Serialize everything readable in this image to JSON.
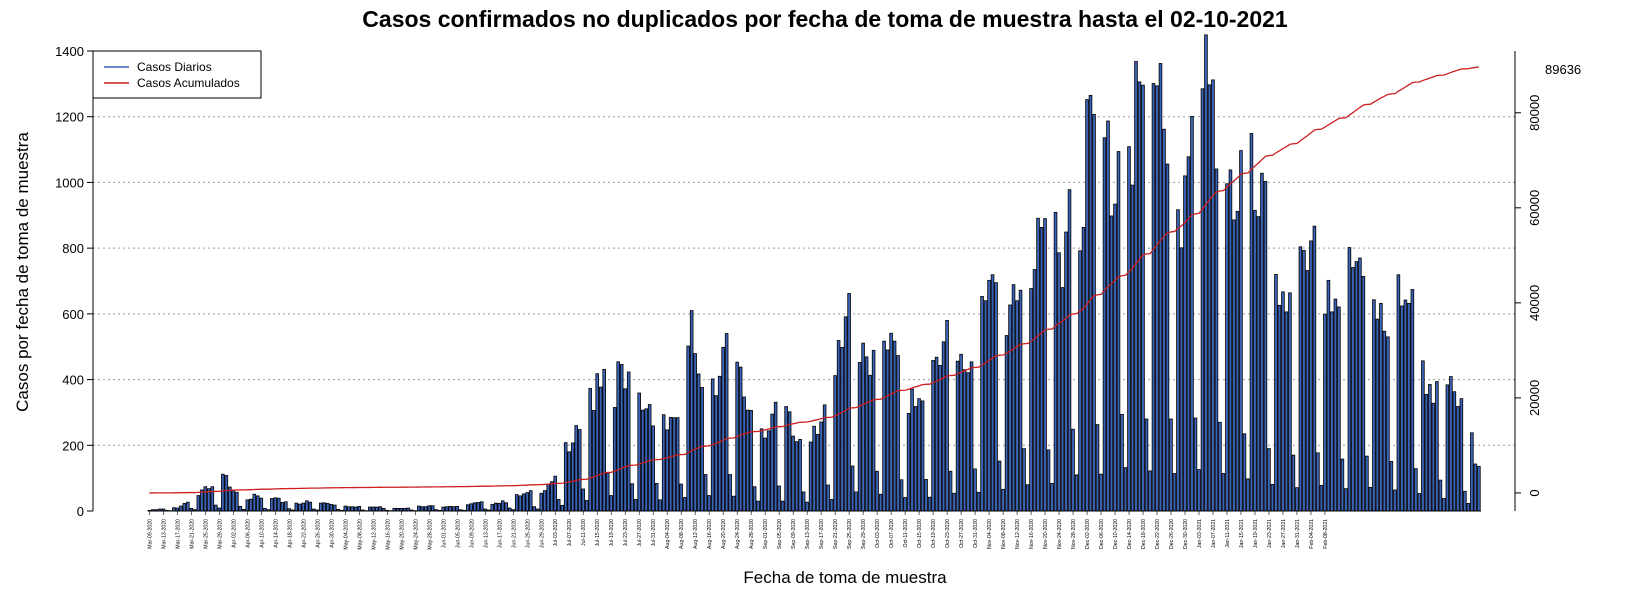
{
  "chart_data": {
    "type": "bar",
    "title": "Casos confirmados no duplicados por fecha de toma de muestra hasta el 02-10-2021",
    "xlabel": "Fecha de toma de muestra",
    "ylabel": "Casos por fecha de toma de muestra",
    "ylim": [
      0,
      1400
    ],
    "yticks": [
      0,
      200,
      400,
      600,
      800,
      1000,
      1200,
      1400
    ],
    "y2lim": [
      -3800,
      93000
    ],
    "y2ticks": [
      0,
      20000,
      40000,
      60000,
      80000
    ],
    "grid": "horizontal dotted",
    "legend": {
      "position": "top-left",
      "entries": [
        "Casos Diarios",
        "Casos Acumulados"
      ]
    },
    "colors": {
      "bars": "#3b63b8",
      "bar_edge": "#000000",
      "cumulative": "#cc1f1f"
    },
    "final_cumulative": "89636",
    "anchors": [
      {
        "x": 0,
        "y": 2
      },
      {
        "x": 4,
        "y": 5
      },
      {
        "x": 8,
        "y": 10
      },
      {
        "x": 12,
        "y": 30
      },
      {
        "x": 15,
        "y": 50
      },
      {
        "x": 18,
        "y": 55
      },
      {
        "x": 21,
        "y": 85
      },
      {
        "x": 24,
        "y": 70
      },
      {
        "x": 27,
        "y": 40
      },
      {
        "x": 33,
        "y": 30
      },
      {
        "x": 40,
        "y": 25
      },
      {
        "x": 50,
        "y": 20
      },
      {
        "x": 60,
        "y": 12
      },
      {
        "x": 70,
        "y": 8
      },
      {
        "x": 80,
        "y": 12
      },
      {
        "x": 90,
        "y": 15
      },
      {
        "x": 100,
        "y": 25
      },
      {
        "x": 110,
        "y": 45
      },
      {
        "x": 115,
        "y": 90
      },
      {
        "x": 118,
        "y": 140
      },
      {
        "x": 121,
        "y": 150
      },
      {
        "x": 126,
        "y": 300
      },
      {
        "x": 130,
        "y": 440
      },
      {
        "x": 135,
        "y": 320
      },
      {
        "x": 140,
        "y": 280
      },
      {
        "x": 145,
        "y": 300
      },
      {
        "x": 150,
        "y": 200
      },
      {
        "x": 155,
        "y": 430
      },
      {
        "x": 160,
        "y": 390
      },
      {
        "x": 165,
        "y": 420
      },
      {
        "x": 170,
        "y": 300
      },
      {
        "x": 175,
        "y": 240
      },
      {
        "x": 180,
        "y": 270
      },
      {
        "x": 185,
        "y": 180
      },
      {
        "x": 190,
        "y": 250
      },
      {
        "x": 195,
        "y": 290
      },
      {
        "x": 200,
        "y": 500
      },
      {
        "x": 205,
        "y": 450
      },
      {
        "x": 210,
        "y": 420
      },
      {
        "x": 215,
        "y": 340
      },
      {
        "x": 220,
        "y": 330
      },
      {
        "x": 225,
        "y": 360
      },
      {
        "x": 230,
        "y": 450
      },
      {
        "x": 235,
        "y": 440
      },
      {
        "x": 240,
        "y": 520
      },
      {
        "x": 245,
        "y": 560
      },
      {
        "x": 250,
        "y": 680
      },
      {
        "x": 255,
        "y": 600
      },
      {
        "x": 260,
        "y": 760
      },
      {
        "x": 265,
        "y": 920
      },
      {
        "x": 270,
        "y": 950
      },
      {
        "x": 275,
        "y": 900
      },
      {
        "x": 280,
        "y": 1150
      },
      {
        "x": 285,
        "y": 1000
      },
      {
        "x": 290,
        "y": 1100
      },
      {
        "x": 295,
        "y": 850
      },
      {
        "x": 300,
        "y": 1050
      },
      {
        "x": 305,
        "y": 980
      },
      {
        "x": 310,
        "y": 900
      },
      {
        "x": 315,
        "y": 800
      },
      {
        "x": 320,
        "y": 680
      },
      {
        "x": 325,
        "y": 640
      },
      {
        "x": 330,
        "y": 560
      },
      {
        "x": 335,
        "y": 650
      },
      {
        "x": 340,
        "y": 560
      },
      {
        "x": 345,
        "y": 580
      },
      {
        "x": 350,
        "y": 610
      },
      {
        "x": 355,
        "y": 540
      },
      {
        "x": 360,
        "y": 500
      },
      {
        "x": 365,
        "y": 400
      },
      {
        "x": 370,
        "y": 320
      },
      {
        "x": 375,
        "y": 240
      },
      {
        "x": 380,
        "y": 120
      }
    ],
    "bars_total": 381,
    "x_tick_labels": [
      "Mar-09-2020",
      "Mar-13-2020",
      "Mar-17-2020",
      "Mar-21-2020",
      "Mar-25-2020",
      "Mar-29-2020",
      "Apr-02-2020",
      "Apr-06-2020",
      "Apr-10-2020",
      "Apr-14-2020",
      "Apr-18-2020",
      "Apr-22-2020",
      "Apr-26-2020",
      "Apr-30-2020",
      "May-04-2020",
      "May-08-2020",
      "May-12-2020",
      "May-16-2020",
      "May-20-2020",
      "May-24-2020",
      "May-28-2020",
      "Jun-01-2020",
      "Jun-05-2020",
      "Jun-09-2020",
      "Jun-13-2020",
      "Jun-17-2020",
      "Jun-21-2020",
      "Jun-25-2020",
      "Jun-29-2020",
      "Jul-03-2020",
      "Jul-07-2020",
      "Jul-11-2020",
      "Jul-15-2020",
      "Jul-19-2020",
      "Jul-23-2020",
      "Jul-27-2020",
      "Jul-31-2020",
      "Aug-04-2020",
      "Aug-08-2020",
      "Aug-12-2020",
      "Aug-16-2020",
      "Aug-20-2020",
      "Aug-24-2020",
      "Aug-28-2020",
      "Sep-01-2020",
      "Sep-05-2020",
      "Sep-09-2020",
      "Sep-13-2020",
      "Sep-17-2020",
      "Sep-21-2020",
      "Sep-25-2020",
      "Sep-29-2020",
      "Oct-03-2020",
      "Oct-07-2020",
      "Oct-11-2020",
      "Oct-15-2020",
      "Oct-19-2020",
      "Oct-23-2020",
      "Oct-27-2020",
      "Oct-31-2020",
      "Nov-04-2020",
      "Nov-08-2020",
      "Nov-12-2020",
      "Nov-16-2020",
      "Nov-20-2020",
      "Nov-24-2020",
      "Nov-28-2020",
      "Dec-02-2020",
      "Dec-06-2020",
      "Dec-10-2020",
      "Dec-14-2020",
      "Dec-18-2020",
      "Dec-22-2020",
      "Dec-26-2020",
      "Dec-30-2020",
      "Jan-03-2021",
      "Jan-07-2021",
      "Jan-11-2021",
      "Jan-15-2021",
      "Jan-19-2021",
      "Jan-23-2021",
      "Jan-27-2021",
      "Jan-31-2021",
      "Feb-04-2021",
      "Feb-08-2021"
    ]
  }
}
